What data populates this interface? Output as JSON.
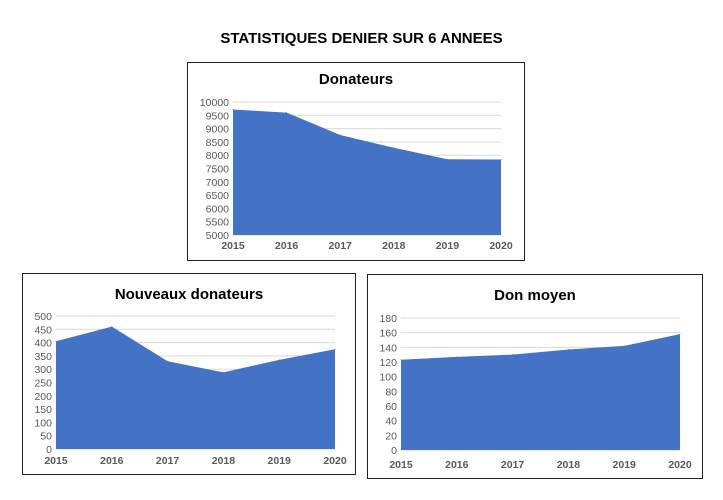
{
  "page_title": "STATISTIQUES DENIER SUR 6 ANNEES",
  "colors": {
    "area": "#4472C4",
    "grid": "#D9D9D9",
    "tick_text": "#595959"
  },
  "chart_data": [
    {
      "type": "area",
      "title": "Donateurs",
      "categories": [
        "2015",
        "2016",
        "2017",
        "2018",
        "2019",
        "2020"
      ],
      "values": [
        9720,
        9600,
        8760,
        8280,
        7850,
        7840
      ],
      "ylim": [
        5000,
        10000
      ],
      "yticks": [
        "5000",
        "5500",
        "6000",
        "6500",
        "7000",
        "7500",
        "8000",
        "8500",
        "9000",
        "9500",
        "10000"
      ],
      "grid": true,
      "xlabel": "",
      "ylabel": ""
    },
    {
      "type": "area",
      "title": "Nouveaux donateurs",
      "categories": [
        "2015",
        "2016",
        "2017",
        "2018",
        "2019",
        "2020"
      ],
      "values": [
        405,
        460,
        330,
        288,
        335,
        375
      ],
      "ylim": [
        0,
        500
      ],
      "yticks": [
        "0",
        "50",
        "100",
        "150",
        "200",
        "250",
        "300",
        "350",
        "400",
        "450",
        "500"
      ],
      "grid": true,
      "xlabel": "",
      "ylabel": ""
    },
    {
      "type": "area",
      "title": "Don moyen",
      "categories": [
        "2015",
        "2016",
        "2017",
        "2018",
        "2019",
        "2020"
      ],
      "values": [
        123,
        127,
        130,
        137,
        142,
        158
      ],
      "ylim": [
        0,
        180
      ],
      "yticks": [
        "0",
        "20",
        "40",
        "60",
        "80",
        "100",
        "120",
        "140",
        "160",
        "180"
      ],
      "grid": true,
      "xlabel": "",
      "ylabel": ""
    }
  ]
}
